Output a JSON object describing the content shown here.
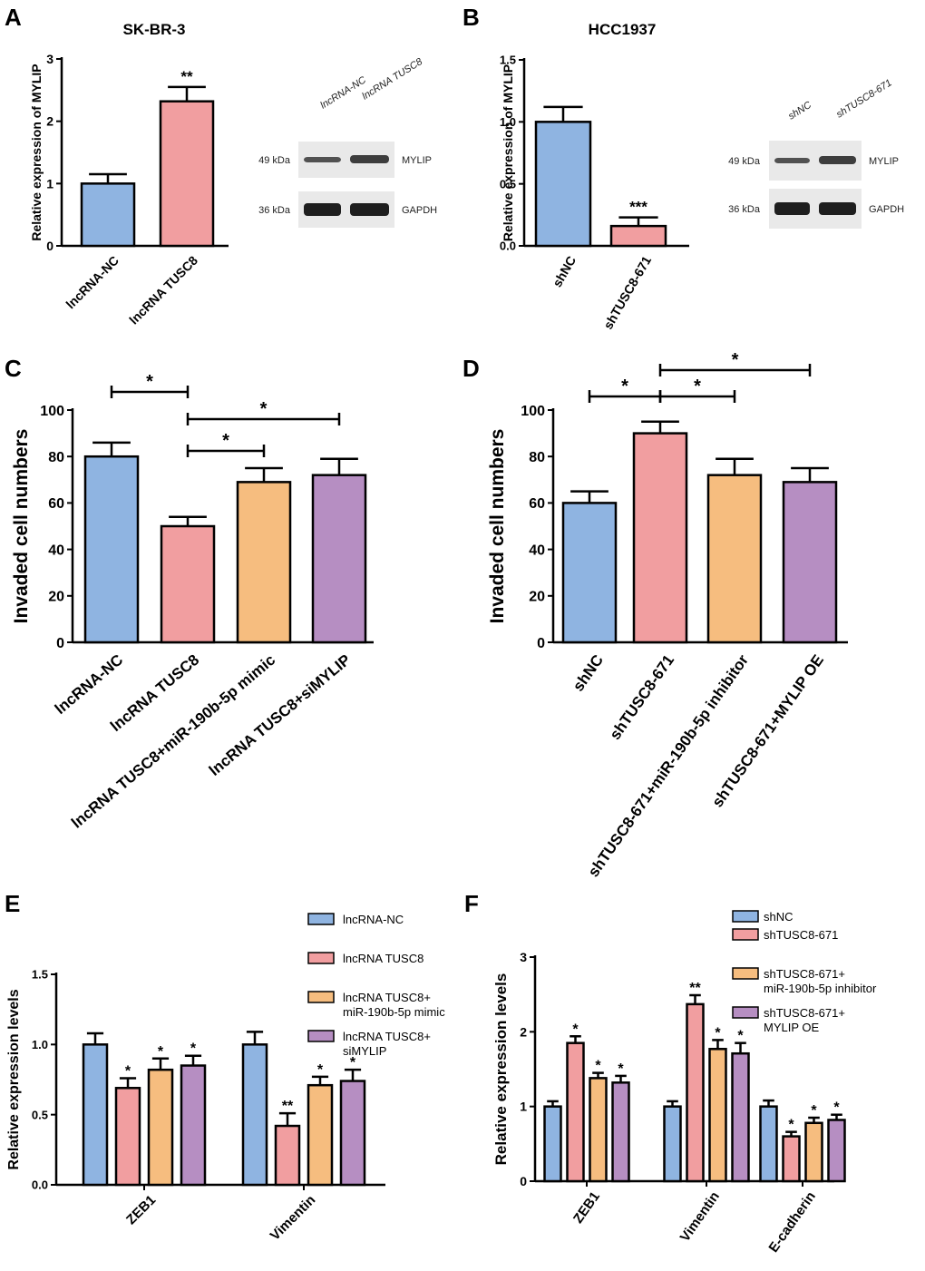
{
  "colors": {
    "blue": "#8fb4e1",
    "pink": "#f19ea0",
    "orange": "#f6bd7f",
    "purple": "#b68ec2",
    "axis": "#000000",
    "band_dark": "#1e1e1e",
    "band_bg": "#e9e9e9"
  },
  "chart_data": [
    {
      "id": "A",
      "letter": "A",
      "type": "bar",
      "title": "SK-BR-3",
      "ylabel": "Relative expression of MYLIP",
      "ylim": [
        0,
        3
      ],
      "yticks": [
        "0",
        "1",
        "2",
        "3"
      ],
      "categories": [
        "lncRNA-NC",
        "lncRNA TUSC8"
      ],
      "values": [
        1.0,
        2.32
      ],
      "errors": [
        0.15,
        0.23
      ],
      "colors": [
        "blue",
        "pink"
      ],
      "stars": [
        "",
        "**"
      ],
      "western_blot": {
        "lanes": [
          "lncRNA-NC",
          "lncRNA TUSC8"
        ],
        "rows": [
          {
            "kda": "49 kDa",
            "protein": "MYLIP"
          },
          {
            "kda": "36 kDa",
            "protein": "GAPDH"
          }
        ]
      }
    },
    {
      "id": "B",
      "letter": "B",
      "type": "bar",
      "title": "HCC1937",
      "ylabel": "Relative expression of MYLIP",
      "ylim": [
        0,
        1.5
      ],
      "yticks": [
        "0.0",
        "0.5",
        "1.0",
        "1.5"
      ],
      "categories": [
        "shNC",
        "shTUSC8-671"
      ],
      "values": [
        1.0,
        0.16
      ],
      "errors": [
        0.12,
        0.07
      ],
      "colors": [
        "blue",
        "pink"
      ],
      "stars": [
        "",
        "***"
      ],
      "western_blot": {
        "lanes": [
          "shNC",
          "shTUSC8-671"
        ],
        "rows": [
          {
            "kda": "49 kDa",
            "protein": "MYLIP"
          },
          {
            "kda": "36 kDa",
            "protein": "GAPDH"
          }
        ]
      }
    },
    {
      "id": "C",
      "letter": "C",
      "type": "bar",
      "title": "",
      "ylabel": "Invaded cell numbers",
      "ylim": [
        0,
        100
      ],
      "yticks": [
        "0",
        "20",
        "40",
        "60",
        "80",
        "100"
      ],
      "categories": [
        "lncRNA-NC",
        "lncRNA TUSC8",
        "lncRNA TUSC8+miR-190b-5p mimic",
        "lncRNA TUSC8+siMYLIP"
      ],
      "values": [
        80,
        50,
        69,
        72
      ],
      "errors": [
        6,
        4,
        6,
        7
      ],
      "colors": [
        "blue",
        "pink",
        "orange",
        "purple"
      ],
      "comparisons": [
        {
          "from": 0,
          "to": 1,
          "label": "*"
        },
        {
          "from": 1,
          "to": 3,
          "label": "*"
        },
        {
          "from": 1,
          "to": 2,
          "label": "*"
        }
      ]
    },
    {
      "id": "D",
      "letter": "D",
      "type": "bar",
      "title": "",
      "ylabel": "Invaded cell numbers",
      "ylim": [
        0,
        100
      ],
      "yticks": [
        "0",
        "20",
        "40",
        "60",
        "80",
        "100"
      ],
      "categories": [
        "shNC",
        "shTUSC8-671",
        "shTUSC8-671+miR-190b-5p inhibitor",
        "shTUSC8-671+MYLIP OE"
      ],
      "values": [
        60,
        90,
        72,
        69
      ],
      "errors": [
        5,
        5,
        7,
        6
      ],
      "colors": [
        "blue",
        "pink",
        "orange",
        "purple"
      ],
      "comparisons": [
        {
          "from": 1,
          "to": 3,
          "label": "*"
        },
        {
          "from": 0,
          "to": 1,
          "label": "*"
        },
        {
          "from": 1,
          "to": 2,
          "label": "*"
        }
      ]
    },
    {
      "id": "E",
      "letter": "E",
      "type": "grouped-bar",
      "title": "",
      "ylabel": "Relative expression levels",
      "ylim": [
        0,
        1.5
      ],
      "yticks": [
        "0.0",
        "0.5",
        "1.0",
        "1.5"
      ],
      "categories": [
        "ZEB1",
        "Vimentin"
      ],
      "series": [
        {
          "name": "lncRNA-NC",
          "legend_lines": [
            "lncRNA-NC"
          ],
          "color": "blue",
          "values": [
            1.0,
            1.0
          ],
          "errors": [
            0.08,
            0.09
          ],
          "stars": [
            "",
            ""
          ]
        },
        {
          "name": "lncRNA TUSC8",
          "legend_lines": [
            "lncRNA TUSC8"
          ],
          "color": "pink",
          "values": [
            0.69,
            0.42
          ],
          "errors": [
            0.07,
            0.09
          ],
          "stars": [
            "*",
            "**"
          ]
        },
        {
          "name": "lncRNA TUSC8+ miR-190b-5p mimic",
          "legend_lines": [
            "lncRNA TUSC8+",
            "miR-190b-5p mimic"
          ],
          "color": "orange",
          "values": [
            0.82,
            0.71
          ],
          "errors": [
            0.08,
            0.06
          ],
          "stars": [
            "*",
            "*"
          ]
        },
        {
          "name": "lncRNA TUSC8+ siMYLIP",
          "legend_lines": [
            "lncRNA TUSC8+",
            "siMYLIP"
          ],
          "color": "purple",
          "values": [
            0.85,
            0.74
          ],
          "errors": [
            0.07,
            0.08
          ],
          "stars": [
            "*",
            "*"
          ]
        }
      ]
    },
    {
      "id": "F",
      "letter": "F",
      "type": "grouped-bar",
      "title": "",
      "ylabel": "Relative expression levels",
      "ylim": [
        0,
        3
      ],
      "yticks": [
        "0",
        "1",
        "2",
        "3"
      ],
      "categories": [
        "ZEB1",
        "Vimentin",
        "E-cadherin"
      ],
      "series": [
        {
          "name": "shNC",
          "legend_lines": [
            "shNC"
          ],
          "color": "blue",
          "values": [
            1.0,
            1.0,
            1.0
          ],
          "errors": [
            0.07,
            0.07,
            0.08
          ],
          "stars": [
            "",
            "",
            ""
          ]
        },
        {
          "name": "shTUSC8-671",
          "legend_lines": [
            "shTUSC8-671"
          ],
          "color": "pink",
          "values": [
            1.85,
            2.37,
            0.6
          ],
          "errors": [
            0.09,
            0.12,
            0.06
          ],
          "stars": [
            "*",
            "**",
            "*"
          ]
        },
        {
          "name": "shTUSC8-671+ miR-190b-5p inhibitor",
          "legend_lines": [
            "shTUSC8-671+",
            "miR-190b-5p inhibitor"
          ],
          "color": "orange",
          "values": [
            1.38,
            1.77,
            0.78
          ],
          "errors": [
            0.07,
            0.12,
            0.07
          ],
          "stars": [
            "*",
            "*",
            "*"
          ]
        },
        {
          "name": "shTUSC8-671+ MYLIP OE",
          "legend_lines": [
            "shTUSC8-671+",
            "MYLIP OE"
          ],
          "color": "purple",
          "values": [
            1.32,
            1.71,
            0.82
          ],
          "errors": [
            0.09,
            0.14,
            0.07
          ],
          "stars": [
            "*",
            "*",
            "*"
          ]
        }
      ]
    }
  ]
}
